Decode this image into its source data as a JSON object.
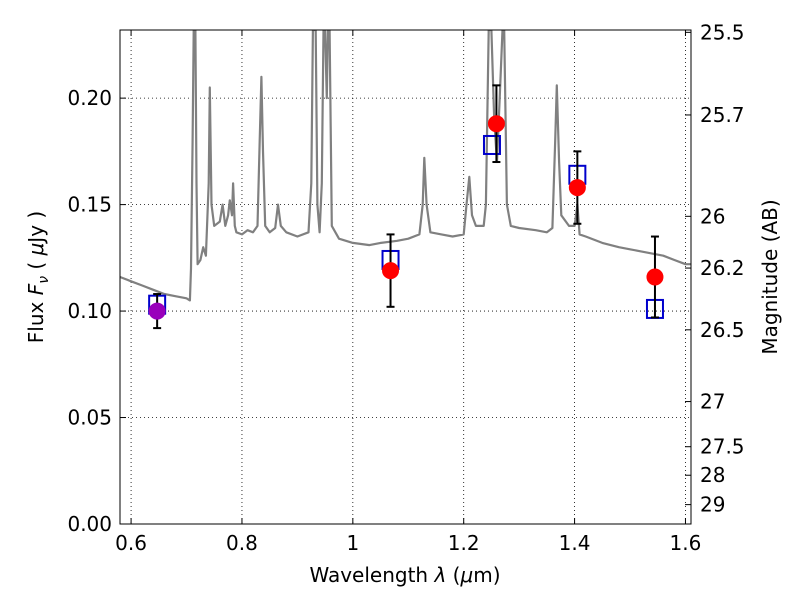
{
  "chart_data": {
    "type": "scatter",
    "xlabel_parts": [
      "Wavelength ",
      "λ",
      " (",
      "μ",
      "m)"
    ],
    "ylabel_parts": [
      "Flux ",
      "F",
      "ν",
      " ( ",
      "μ",
      "Jy )"
    ],
    "y2label": "Magnitude (AB)",
    "xlim": [
      0.58,
      1.61
    ],
    "ylim": [
      0.0,
      0.232
    ],
    "x_ticks": [
      0.6,
      0.8,
      1.0,
      1.2,
      1.4,
      1.6
    ],
    "x_tick_labels": [
      "0.6",
      "0.8",
      "1",
      "1.2",
      "1.4",
      "1.6"
    ],
    "y_ticks": [
      0.0,
      0.05,
      0.1,
      0.15,
      0.2
    ],
    "y_tick_labels": [
      "0.00",
      "0.05",
      "0.10",
      "0.15",
      "0.20"
    ],
    "y2_tick_labels": [
      "25.5",
      "25.7",
      "26",
      "26.2",
      "26.5",
      "27",
      "27.5",
      "28",
      "29"
    ],
    "y2_tick_flux": [
      0.2309,
      0.1921,
      0.1445,
      0.1202,
      0.0912,
      0.0575,
      0.0363,
      0.0229,
      0.0091
    ],
    "grid": true,
    "model_spectrum": {
      "color": "#808080",
      "points": [
        [
          0.58,
          0.116
        ],
        [
          0.6,
          0.114
        ],
        [
          0.62,
          0.112
        ],
        [
          0.64,
          0.11
        ],
        [
          0.66,
          0.108
        ],
        [
          0.68,
          0.107
        ],
        [
          0.7,
          0.106
        ],
        [
          0.706,
          0.105
        ],
        [
          0.708,
          0.12
        ],
        [
          0.711,
          0.18
        ],
        [
          0.713,
          0.232
        ],
        [
          0.716,
          0.232
        ],
        [
          0.718,
          0.16
        ],
        [
          0.72,
          0.122
        ],
        [
          0.725,
          0.124
        ],
        [
          0.73,
          0.13
        ],
        [
          0.735,
          0.126
        ],
        [
          0.74,
          0.16
        ],
        [
          0.742,
          0.205
        ],
        [
          0.745,
          0.15
        ],
        [
          0.75,
          0.14
        ],
        [
          0.76,
          0.142
        ],
        [
          0.765,
          0.15
        ],
        [
          0.77,
          0.14
        ],
        [
          0.775,
          0.145
        ],
        [
          0.778,
          0.152
        ],
        [
          0.782,
          0.145
        ],
        [
          0.784,
          0.16
        ],
        [
          0.787,
          0.14
        ],
        [
          0.79,
          0.137
        ],
        [
          0.8,
          0.136
        ],
        [
          0.81,
          0.138
        ],
        [
          0.82,
          0.137
        ],
        [
          0.828,
          0.14
        ],
        [
          0.832,
          0.18
        ],
        [
          0.835,
          0.21
        ],
        [
          0.838,
          0.175
        ],
        [
          0.842,
          0.14
        ],
        [
          0.85,
          0.137
        ],
        [
          0.86,
          0.139
        ],
        [
          0.865,
          0.15
        ],
        [
          0.87,
          0.14
        ],
        [
          0.88,
          0.137
        ],
        [
          0.9,
          0.135
        ],
        [
          0.92,
          0.137
        ],
        [
          0.925,
          0.16
        ],
        [
          0.928,
          0.232
        ],
        [
          0.933,
          0.232
        ],
        [
          0.936,
          0.15
        ],
        [
          0.94,
          0.137
        ],
        [
          0.944,
          0.16
        ],
        [
          0.947,
          0.232
        ],
        [
          0.95,
          0.232
        ],
        [
          0.953,
          0.2
        ],
        [
          0.955,
          0.232
        ],
        [
          0.958,
          0.232
        ],
        [
          0.962,
          0.14
        ],
        [
          0.975,
          0.134
        ],
        [
          1.0,
          0.132
        ],
        [
          1.03,
          0.131
        ],
        [
          1.05,
          0.132
        ],
        [
          1.08,
          0.133
        ],
        [
          1.1,
          0.134
        ],
        [
          1.12,
          0.136
        ],
        [
          1.126,
          0.15
        ],
        [
          1.129,
          0.172
        ],
        [
          1.133,
          0.15
        ],
        [
          1.14,
          0.137
        ],
        [
          1.16,
          0.136
        ],
        [
          1.18,
          0.135
        ],
        [
          1.2,
          0.136
        ],
        [
          1.205,
          0.15
        ],
        [
          1.21,
          0.163
        ],
        [
          1.215,
          0.145
        ],
        [
          1.222,
          0.14
        ],
        [
          1.236,
          0.14
        ],
        [
          1.24,
          0.15
        ],
        [
          1.245,
          0.232
        ],
        [
          1.25,
          0.232
        ],
        [
          1.255,
          0.19
        ],
        [
          1.26,
          0.17
        ],
        [
          1.265,
          0.2
        ],
        [
          1.27,
          0.232
        ],
        [
          1.273,
          0.232
        ],
        [
          1.278,
          0.15
        ],
        [
          1.285,
          0.14
        ],
        [
          1.3,
          0.139
        ],
        [
          1.33,
          0.138
        ],
        [
          1.35,
          0.137
        ],
        [
          1.36,
          0.139
        ],
        [
          1.365,
          0.18
        ],
        [
          1.368,
          0.206
        ],
        [
          1.372,
          0.17
        ],
        [
          1.376,
          0.145
        ],
        [
          1.39,
          0.14
        ],
        [
          1.4,
          0.14
        ],
        [
          1.405,
          0.15
        ],
        [
          1.409,
          0.136
        ],
        [
          1.42,
          0.135
        ],
        [
          1.45,
          0.132
        ],
        [
          1.48,
          0.13
        ],
        [
          1.5,
          0.129
        ],
        [
          1.52,
          0.128
        ],
        [
          1.54,
          0.127
        ],
        [
          1.56,
          0.126
        ],
        [
          1.58,
          0.124
        ],
        [
          1.6,
          0.122
        ],
        [
          1.61,
          0.122
        ]
      ]
    },
    "observed": [
      {
        "x": 0.647,
        "y": 0.1,
        "yerr": 0.008,
        "color": "#9900bb"
      },
      {
        "x": 1.068,
        "y": 0.119,
        "yerr": 0.017,
        "color": "#ff0000"
      },
      {
        "x": 1.259,
        "y": 0.188,
        "yerr": 0.018,
        "color": "#ff0000"
      },
      {
        "x": 1.405,
        "y": 0.158,
        "yerr": 0.017,
        "color": "#ff0000"
      },
      {
        "x": 1.545,
        "y": 0.116,
        "yerr": 0.019,
        "color": "#ff0000"
      }
    ],
    "model_photometry": {
      "color": "#0000cc",
      "points": [
        [
          0.647,
          0.103
        ],
        [
          1.068,
          0.124
        ],
        [
          1.251,
          0.178
        ],
        [
          1.405,
          0.164
        ],
        [
          1.545,
          0.101
        ]
      ]
    }
  }
}
